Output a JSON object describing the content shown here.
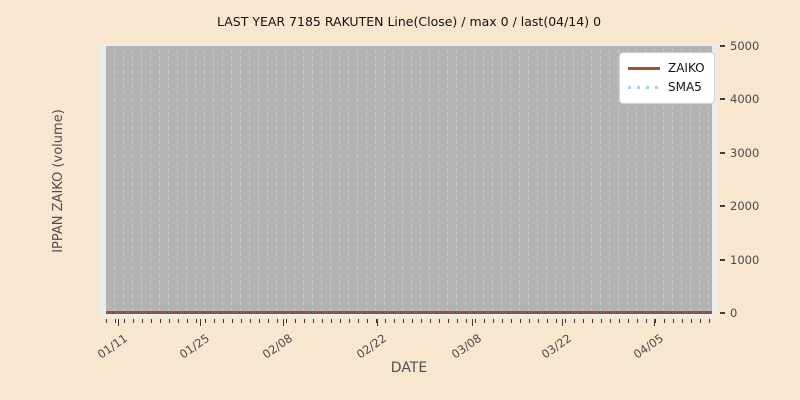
{
  "figure": {
    "background_color": "#f8e6cf",
    "plot_background_color": "#b3b3b3",
    "axes_edge_color": "#ececec"
  },
  "chart": {
    "title": "LAST YEAR 7185 RAKUTEN Line(Close) / max 0 / last(04/14) 0",
    "xlabel": "DATE",
    "ylabel": "IPPAN ZAIKO (volume)",
    "legend": {
      "position": "upper right",
      "items": [
        {
          "label": "ZAIKO",
          "color": "#a0522d",
          "style": "solid"
        },
        {
          "label": "SMA5",
          "color": "#a9cfe6",
          "style": "dotted"
        }
      ]
    }
  },
  "chart_data": {
    "type": "line",
    "title": "LAST YEAR 7185 RAKUTEN Line(Close) / max 0 / last(04/14) 0",
    "xlabel": "DATE",
    "ylabel": "IPPAN ZAIKO (volume)",
    "x_tick_labels": [
      "01/11",
      "01/25",
      "02/08",
      "02/22",
      "03/08",
      "03/22",
      "04/05"
    ],
    "y_ticks": [
      0,
      1000,
      2000,
      3000,
      4000,
      5000
    ],
    "ylim": [
      0,
      5000
    ],
    "categories": [
      "01/11",
      "01/25",
      "02/08",
      "02/22",
      "03/08",
      "03/22",
      "04/05"
    ],
    "series": [
      {
        "name": "ZAIKO",
        "color": "#a0522d",
        "style": "solid",
        "values": [
          0,
          0,
          0,
          0,
          0,
          0,
          0
        ]
      },
      {
        "name": "SMA5",
        "color": "#a9cfe6",
        "style": "dotted",
        "values": [
          0,
          0,
          0,
          0,
          0,
          0,
          0
        ]
      }
    ],
    "max": 0,
    "last_date": "04/14",
    "last_value": 0,
    "grid": "vertical dashed minor gridlines, one per trading day",
    "legend_position": "upper right"
  }
}
